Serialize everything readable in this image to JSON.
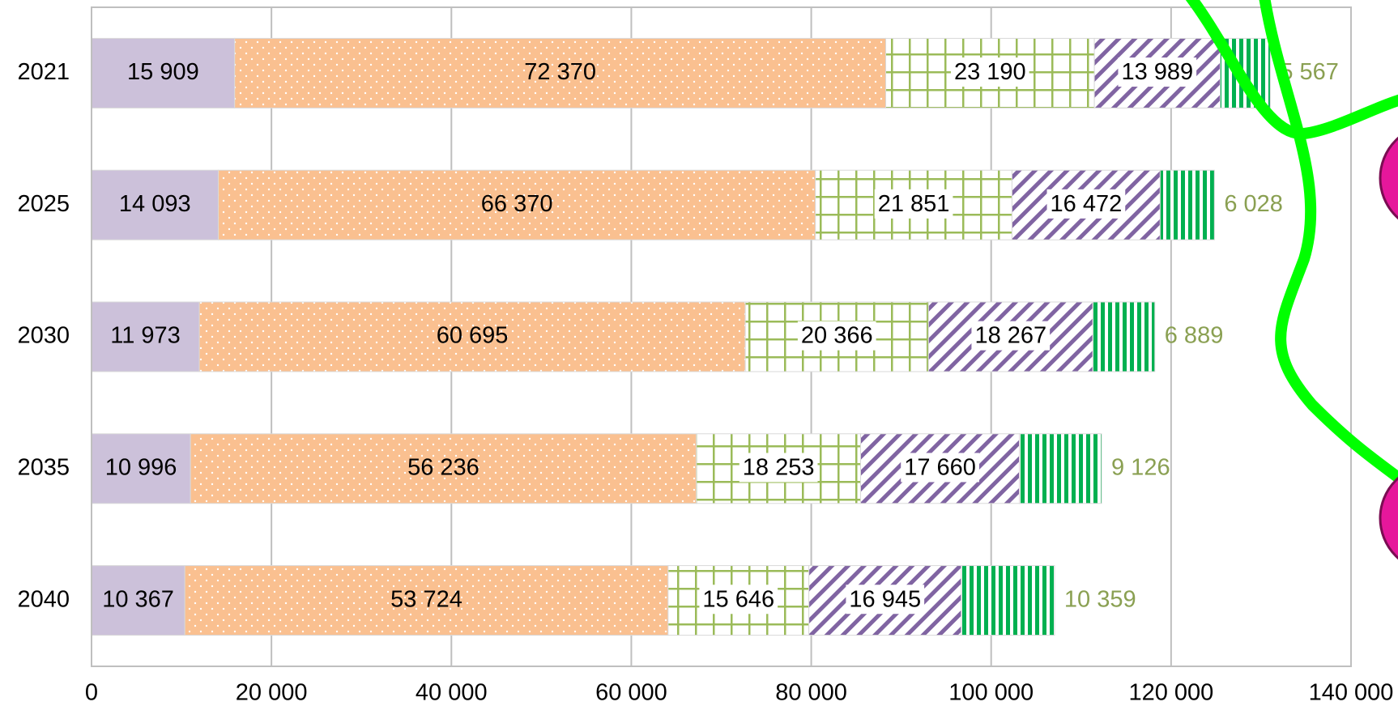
{
  "chart_data": {
    "type": "stacked-barh",
    "categories": [
      "2021",
      "2025",
      "2030",
      "2035",
      "2040"
    ],
    "series": [
      {
        "color": "#ccc1da",
        "pattern": "none",
        "values": [
          15909,
          14093,
          11973,
          10996,
          10367
        ],
        "value_labels": [
          "15 909",
          "14 093",
          "11 973",
          "10 996",
          "10 367"
        ]
      },
      {
        "color": "#fac090",
        "pattern": "dots",
        "values": [
          72370,
          66370,
          60695,
          56236,
          53724
        ],
        "value_labels": [
          "72 370",
          "66 370",
          "60 695",
          "56 236",
          "53 724"
        ]
      },
      {
        "color": "#9bbb59",
        "pattern": "grid",
        "values": [
          23190,
          21851,
          20366,
          18253,
          15646
        ],
        "value_labels": [
          "23 190",
          "21 851",
          "20 366",
          "18 253",
          "15 646"
        ]
      },
      {
        "color": "#8064a2",
        "pattern": "diagonal",
        "values": [
          13989,
          16472,
          18267,
          17660,
          16945
        ],
        "value_labels": [
          "13 989",
          "16 472",
          "18 267",
          "17 660",
          "16 945"
        ]
      },
      {
        "color": "#00b050",
        "pattern": "vertical",
        "label_color": "#8aa052",
        "values": [
          5567,
          6028,
          6889,
          9126,
          10359
        ],
        "value_labels": [
          "5 567",
          "6 028",
          "6 889",
          "9 126",
          "10 359"
        ]
      }
    ],
    "xlim": [
      0,
      140000
    ],
    "xticks": [
      0,
      {
        "value": 20000,
        "label": "20 000"
      },
      {
        "value": 40000,
        "label": "40 000"
      },
      {
        "value": 60000,
        "label": "60 000"
      },
      {
        "value": 80000,
        "label": "80 000"
      },
      {
        "value": 100000,
        "label": "100 000"
      },
      {
        "value": 120000,
        "label": "120 000"
      },
      {
        "value": 140000,
        "label": "140 000"
      }
    ],
    "grid": true
  }
}
